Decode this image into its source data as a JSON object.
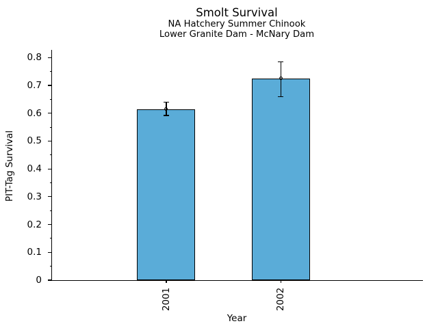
{
  "chart_data": {
    "type": "bar",
    "title": "Smolt Survival",
    "subtitle1": "NA Hatchery Summer Chinook",
    "subtitle2": "Lower Granite Dam - McNary Dam",
    "xlabel": "Year",
    "ylabel": "PIT-Tag Survival",
    "categories": [
      "2001",
      "2002"
    ],
    "values": [
      0.615,
      0.725
    ],
    "error_low": [
      0.592,
      0.66
    ],
    "error_high": [
      0.64,
      0.784
    ],
    "y_ticks": [
      0,
      0.1,
      0.2,
      0.3,
      0.4,
      0.5,
      0.6,
      0.7,
      0.8
    ],
    "y_tick_labels": [
      "0",
      "0.1",
      "0.2",
      "0.3",
      "0.4",
      "0.5",
      "0.6",
      "0.7",
      "0.8"
    ],
    "y_minor_tick_step": 0.05,
    "ylim": [
      0,
      0.828
    ],
    "grid": false,
    "legend": null,
    "bar_color": "#5AACD8",
    "edge_color": "#000000",
    "text_color": "#000000"
  }
}
